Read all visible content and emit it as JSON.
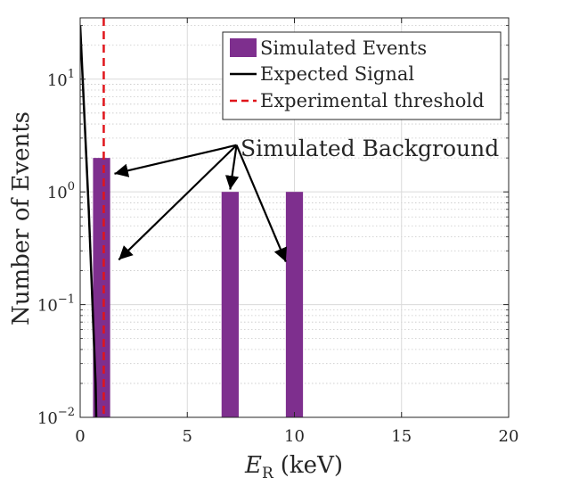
{
  "chart_data": {
    "type": "bar",
    "scale": {
      "x": "linear",
      "y": "log"
    },
    "xlabel_main": "E",
    "xlabel_sub": "R",
    "xlabel_units": "(keV)",
    "ylabel": "Number of Events",
    "xlim": [
      0,
      20
    ],
    "ylim": [
      0.01,
      35
    ],
    "grid": true,
    "x_ticks": [
      {
        "value": 0,
        "label": "0"
      },
      {
        "value": 5,
        "label": "5"
      },
      {
        "value": 10,
        "label": "10"
      },
      {
        "value": 15,
        "label": "15"
      },
      {
        "value": 20,
        "label": "20"
      }
    ],
    "y_ticks": [
      {
        "value": 0.01,
        "base": "10",
        "exp": "−2"
      },
      {
        "value": 0.1,
        "base": "10",
        "exp": "−1"
      },
      {
        "value": 1,
        "base": "10",
        "exp": "0"
      },
      {
        "value": 10,
        "base": "10",
        "exp": "1"
      }
    ],
    "legend": {
      "placement": "top-right",
      "entries": [
        {
          "label": "Simulated Events",
          "kind": "patch",
          "color": "#7e2f8e"
        },
        {
          "label": "Expected Signal",
          "kind": "line",
          "color": "#000000"
        },
        {
          "label": "Experimental threshold",
          "kind": "dashed",
          "color": "#e0151b"
        }
      ]
    },
    "series": [
      {
        "name": "Simulated Events",
        "type": "bar",
        "color": "#7e2f8e",
        "bin_width": 0.8,
        "bins": [
          {
            "center": 1.0,
            "value": 2
          },
          {
            "center": 7.0,
            "value": 1
          },
          {
            "center": 10.0,
            "value": 1
          }
        ]
      },
      {
        "name": "Expected Signal",
        "type": "line",
        "color": "#000000",
        "x": [
          0.0,
          0.4,
          0.72,
          0.75
        ],
        "y": [
          30,
          0.7,
          0.02,
          0.01
        ]
      },
      {
        "name": "Experimental threshold",
        "type": "vline",
        "color": "#e0151b",
        "x": 1.1
      }
    ],
    "annotation": {
      "text": "Simulated Background",
      "origin": {
        "x": 7.3,
        "y": 2.6
      },
      "targets": [
        {
          "x": 1.6,
          "y": 1.45
        },
        {
          "x": 1.8,
          "y": 0.25
        },
        {
          "x": 7.0,
          "y": 1.05
        },
        {
          "x": 9.6,
          "y": 0.24
        }
      ]
    }
  }
}
